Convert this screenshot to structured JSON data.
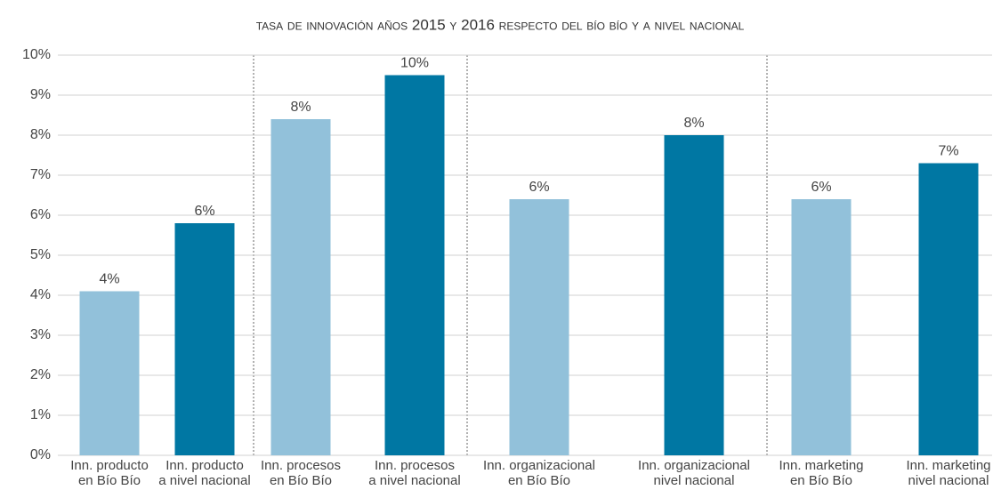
{
  "chart_data": {
    "type": "bar",
    "title": "tasa de innovación años 2015 y 2016 respecto del bío bío y a nivel nacional",
    "categories": [
      "Inn. producto\nen Bío Bío",
      "Inn. producto\na nivel nacional",
      "Inn. procesos\nen Bío Bío",
      "Inn. procesos\na nivel nacional",
      "Inn. organizacional\nen Bío Bío",
      "Inn. organizacional\nnivel nacional",
      "Inn. marketing\nen Bío Bío",
      "Inn. marketing\nnivel nacional"
    ],
    "values": [
      4.1,
      5.8,
      8.4,
      9.5,
      6.4,
      8.0,
      6.4,
      7.3
    ],
    "value_labels": [
      "4%",
      "6%",
      "8%",
      "10%",
      "6%",
      "8%",
      "6%",
      "7%"
    ],
    "colors": [
      "#92c1da",
      "#0077a3",
      "#92c1da",
      "#0077a3",
      "#92c1da",
      "#0077a3",
      "#92c1da",
      "#0077a3"
    ],
    "ylim": [
      0,
      10
    ],
    "yticks": [
      {
        "value": 0,
        "label": "0%"
      },
      {
        "value": 1,
        "label": "1%"
      },
      {
        "value": 2,
        "label": "2%"
      },
      {
        "value": 3,
        "label": "3%"
      },
      {
        "value": 4,
        "label": "4%"
      },
      {
        "value": 5,
        "label": "5%"
      },
      {
        "value": 6,
        "label": "6%"
      },
      {
        "value": 7,
        "label": "7%"
      },
      {
        "value": 8,
        "label": "8%"
      },
      {
        "value": 9,
        "label": "9%"
      },
      {
        "value": 10,
        "label": "10%"
      }
    ],
    "grid": true
  }
}
